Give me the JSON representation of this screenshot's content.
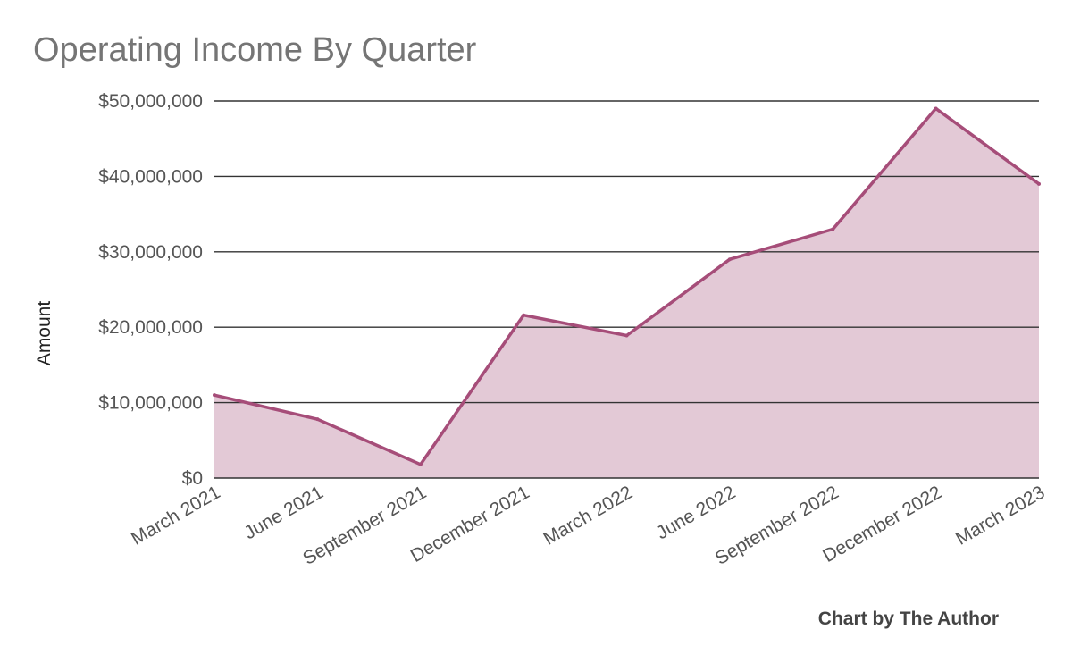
{
  "chart_data": {
    "type": "area",
    "title": "Operating Income By Quarter",
    "ylabel": "Amount",
    "xlabel": "",
    "categories": [
      "March 2021",
      "June 2021",
      "September 2021",
      "December 2021",
      "March 2022",
      "June 2022",
      "September 2022",
      "December 2022",
      "March 2023"
    ],
    "series": [
      {
        "values": [
          11000000,
          7800000,
          1800000,
          21600000,
          18900000,
          29000000,
          33000000,
          49000000,
          39000000
        ]
      }
    ],
    "ylim": [
      0,
      50000000
    ],
    "yticks": [
      0,
      10000000,
      20000000,
      30000000,
      40000000,
      50000000
    ],
    "ytick_labels": [
      "$0",
      "$10,000,000",
      "$20,000,000",
      "$30,000,000",
      "$40,000,000",
      "$50,000,000"
    ],
    "grid": true,
    "legend": "none",
    "colors": {
      "line": "#a64d79",
      "fill": "#e3c9d6",
      "grid": "#333333",
      "title": "#757575",
      "ticks": "#555555"
    }
  },
  "credit": "Chart by The Author"
}
